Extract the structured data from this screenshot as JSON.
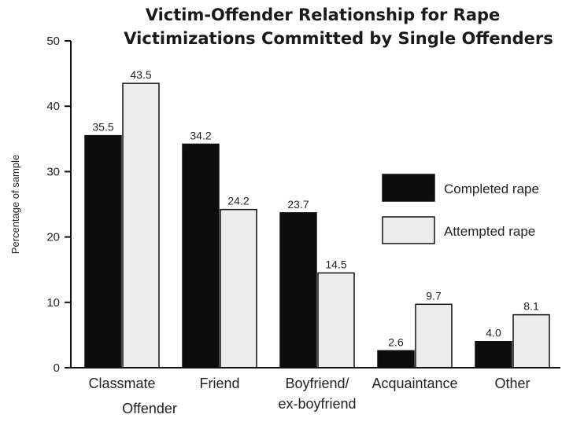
{
  "chart_data": {
    "type": "bar",
    "title": "Victim-Offender Relationship for Rape Victimizations Committed by Single Offenders",
    "title_lines": [
      "Victim-Offender Relationship for Rape",
      "Victimizations Committed by Single Offenders"
    ],
    "xlabel": "Offender",
    "ylabel": "Percentage of sample",
    "ylim": [
      0,
      50
    ],
    "yticks": [
      0,
      10,
      20,
      30,
      40,
      50
    ],
    "categories": [
      "Classmate",
      "Friend",
      "Boyfriend/ ex-boyfriend",
      "Acquaintance",
      "Other"
    ],
    "category_lines": [
      [
        "Classmate"
      ],
      [
        "Friend"
      ],
      [
        "Boyfriend/",
        "ex-boyfriend"
      ],
      [
        "Acquaintance"
      ],
      [
        "Other"
      ]
    ],
    "series": [
      {
        "name": "Completed rape",
        "values": [
          35.5,
          34.2,
          23.7,
          2.6,
          4.0
        ],
        "labels": [
          "35.5",
          "34.2",
          "23.7",
          "2.6",
          "4.0"
        ],
        "color": "#0d0d0d"
      },
      {
        "name": "Attempted rape",
        "values": [
          43.5,
          24.2,
          14.5,
          9.7,
          8.1
        ],
        "labels": [
          "43.5",
          "24.2",
          "14.5",
          "9.7",
          "8.1"
        ],
        "color": "#ededed"
      }
    ],
    "grid": false,
    "legend_position": "right"
  }
}
